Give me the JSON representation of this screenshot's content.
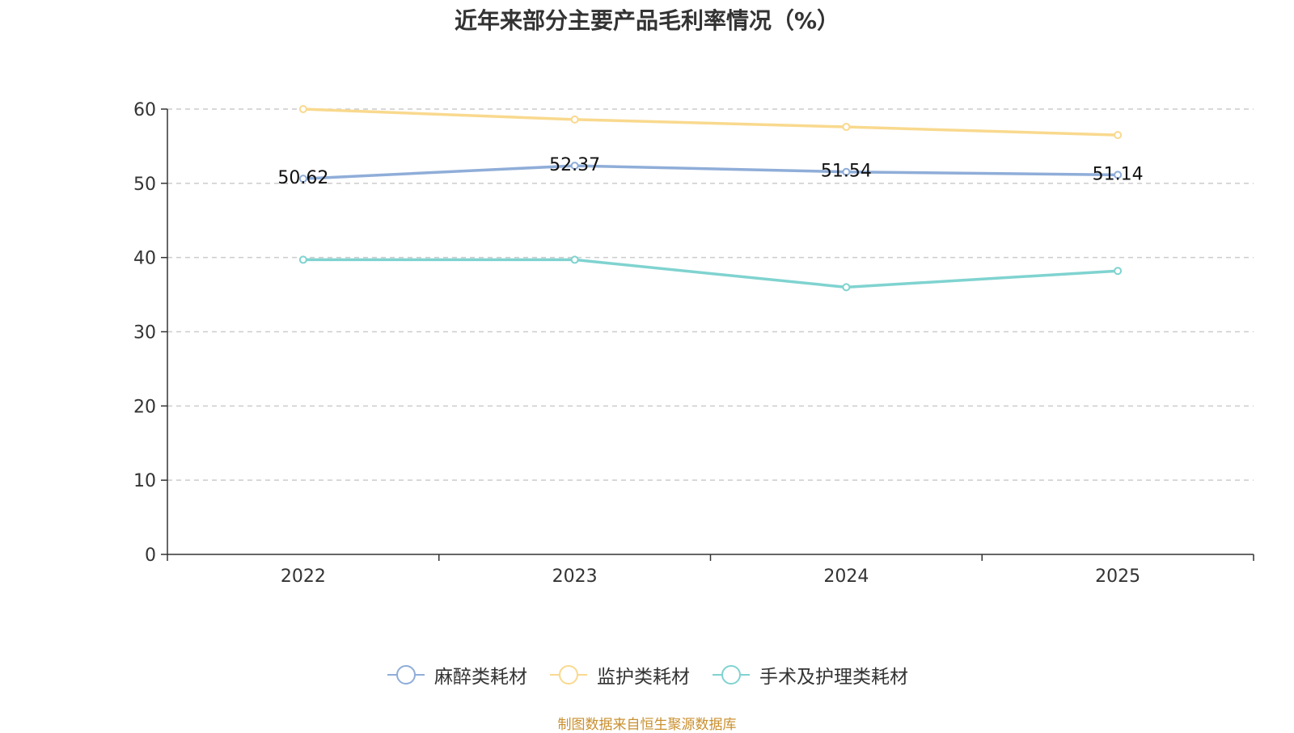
{
  "chart_data": {
    "type": "line",
    "title": "近年来部分主要产品毛利率情况（%）",
    "categories": [
      "2022",
      "2023",
      "2024",
      "2025"
    ],
    "ylim": [
      0,
      60
    ],
    "yticks": [
      0,
      10,
      20,
      30,
      40,
      50,
      60
    ],
    "grid": true,
    "legend_position": "bottom",
    "series": [
      {
        "name": "麻醉类耗材",
        "color": "#8fadd8",
        "values": [
          50.62,
          52.37,
          51.54,
          51.14
        ],
        "labels": [
          "50.62",
          "52.37",
          "51.54",
          "51.14"
        ]
      },
      {
        "name": "监护类耗材",
        "color": "#f9d98e",
        "values": [
          60.0,
          58.6,
          57.6,
          56.5
        ],
        "labels": []
      },
      {
        "name": "手术及护理类耗材",
        "color": "#7fd3d0",
        "values": [
          39.7,
          39.7,
          36.0,
          38.2
        ],
        "labels": []
      }
    ]
  },
  "footer": {
    "source": "制图数据来自恒生聚源数据库"
  }
}
